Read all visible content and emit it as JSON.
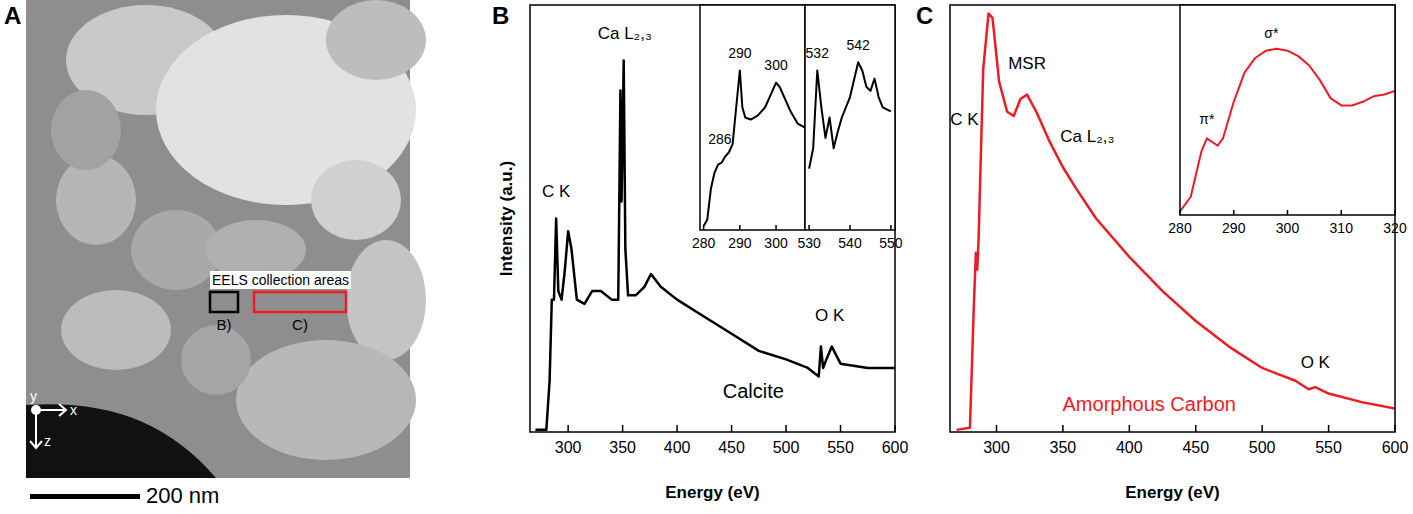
{
  "chart_data": [
    {
      "type": "image",
      "panel": "A",
      "annotation": "EELS collection areas",
      "regions": [
        {
          "label": "B)",
          "color": "#000000"
        },
        {
          "label": "C)",
          "color": "#ed1c24"
        }
      ],
      "scale_bar": "200 nm",
      "triad": [
        "x",
        "y",
        "z"
      ]
    },
    {
      "type": "line",
      "panel": "B",
      "x_label": "Energy (eV)",
      "y_label": "Intensity (a.u.)",
      "color": "#000000",
      "xlim": [
        265,
        600
      ],
      "xticks": [
        300,
        350,
        400,
        450,
        500,
        550,
        600
      ],
      "ylim": [
        0,
        1
      ],
      "tick_labels": "x",
      "x": [
        270,
        280,
        283,
        285,
        287,
        289,
        291,
        294,
        297,
        300,
        303,
        308,
        315,
        322,
        330,
        340,
        346,
        348,
        349,
        351,
        352.5,
        355,
        362,
        370,
        376,
        385,
        400,
        425,
        450,
        475,
        500,
        520,
        530,
        532,
        534,
        537,
        542,
        546,
        550,
        575,
        600
      ],
      "values": [
        0.005,
        0.005,
        0.12,
        0.31,
        0.31,
        0.5,
        0.33,
        0.31,
        0.38,
        0.47,
        0.43,
        0.31,
        0.3,
        0.33,
        0.33,
        0.31,
        0.31,
        0.8,
        0.54,
        0.87,
        0.43,
        0.32,
        0.32,
        0.34,
        0.37,
        0.34,
        0.31,
        0.27,
        0.23,
        0.19,
        0.17,
        0.15,
        0.13,
        0.2,
        0.15,
        0.17,
        0.2,
        0.18,
        0.16,
        0.15,
        0.15
      ],
      "annotations": [
        {
          "text": "C K",
          "x": 289,
          "y": 0.55
        },
        {
          "text": "Ca L₂,₃",
          "x": 352,
          "y": 0.92
        },
        {
          "text": "O K",
          "x": 540,
          "y": 0.26
        },
        {
          "text": "Calcite",
          "x": 470,
          "y": 0.08
        }
      ]
    },
    {
      "type": "line",
      "color": "#000000",
      "xlim": [
        279,
        308
      ],
      "xticks": [
        280,
        290,
        300
      ],
      "ylim": [
        0,
        1.1
      ],
      "tick_labels": "x",
      "x": [
        280,
        281,
        282,
        283,
        284,
        285,
        286,
        287,
        288,
        289,
        290,
        290.7,
        291.5,
        293,
        295,
        297,
        299,
        300,
        301,
        302,
        304,
        306,
        308
      ],
      "values": [
        0.02,
        0.05,
        0.2,
        0.28,
        0.32,
        0.33,
        0.36,
        0.38,
        0.42,
        0.6,
        0.78,
        0.6,
        0.55,
        0.54,
        0.56,
        0.6,
        0.68,
        0.72,
        0.7,
        0.66,
        0.58,
        0.52,
        0.5
      ],
      "annotations": [
        {
          "text": "286",
          "x": 284.5,
          "y": 0.42
        },
        {
          "text": "290",
          "x": 290,
          "y": 0.84
        },
        {
          "text": "300",
          "x": 300,
          "y": 0.78
        }
      ]
    },
    {
      "type": "line",
      "color": "#000000",
      "xlim": [
        529,
        551
      ],
      "xticks": [
        530,
        540,
        550
      ],
      "ylim": [
        0,
        1.1
      ],
      "tick_labels": "x",
      "x": [
        530,
        531,
        532,
        533,
        534,
        535,
        536,
        537,
        538,
        540,
        542,
        543,
        544,
        545,
        546,
        547,
        548,
        550
      ],
      "values": [
        0.3,
        0.4,
        0.78,
        0.6,
        0.45,
        0.55,
        0.4,
        0.48,
        0.55,
        0.65,
        0.82,
        0.78,
        0.7,
        0.68,
        0.74,
        0.65,
        0.6,
        0.58
      ],
      "annotations": [
        {
          "text": "532",
          "x": 532,
          "y": 0.84
        },
        {
          "text": "542",
          "x": 542,
          "y": 0.88
        }
      ]
    },
    {
      "type": "line",
      "panel": "C",
      "x_label": "Energy (eV)",
      "color": "#ed1c24",
      "xlim": [
        265,
        600
      ],
      "xticks": [
        300,
        350,
        400,
        450,
        500,
        550,
        600
      ],
      "ylim": [
        0,
        1
      ],
      "tick_labels": "x",
      "x": [
        270,
        280,
        283,
        284.5,
        285.5,
        286.5,
        290,
        294,
        297,
        302,
        308,
        313,
        318,
        323,
        330,
        340,
        350,
        360,
        375,
        400,
        425,
        450,
        475,
        500,
        525,
        535,
        540,
        550,
        575,
        600
      ],
      "values": [
        0.005,
        0.01,
        0.3,
        0.42,
        0.38,
        0.45,
        0.85,
        0.98,
        0.97,
        0.82,
        0.75,
        0.74,
        0.78,
        0.79,
        0.75,
        0.68,
        0.62,
        0.57,
        0.5,
        0.41,
        0.33,
        0.26,
        0.2,
        0.15,
        0.12,
        0.1,
        0.105,
        0.09,
        0.07,
        0.055
      ],
      "annotations": [
        {
          "text": "C K",
          "x": 286.5,
          "y": 0.72
        },
        {
          "text": "MSR",
          "x": 323,
          "y": 0.85
        },
        {
          "text": "Ca L₂,₃",
          "x": 348,
          "y": 0.68
        },
        {
          "text": "O K",
          "x": 540,
          "y": 0.15
        },
        {
          "text": "Amorphous Carbon",
          "x": 415,
          "y": 0.05,
          "color": "#ed1c24"
        }
      ]
    },
    {
      "type": "line",
      "color": "#ed1c24",
      "xlim": [
        280,
        320
      ],
      "xticks": [
        280,
        290,
        300,
        310,
        320
      ],
      "ylim": [
        0,
        1.15
      ],
      "tick_labels": "x",
      "x": [
        280,
        282,
        284,
        285,
        286,
        287,
        288,
        290,
        292,
        294,
        296,
        298,
        300,
        302,
        304,
        306,
        308,
        310,
        312,
        314,
        316,
        318,
        320
      ],
      "values": [
        0.02,
        0.1,
        0.35,
        0.42,
        0.4,
        0.38,
        0.42,
        0.62,
        0.78,
        0.86,
        0.9,
        0.91,
        0.9,
        0.87,
        0.82,
        0.74,
        0.64,
        0.6,
        0.6,
        0.62,
        0.65,
        0.66,
        0.68
      ],
      "annotations": [
        {
          "text": "π*",
          "x": 285,
          "y": 0.5
        },
        {
          "text": "σ*",
          "x": 297,
          "y": 0.97
        }
      ]
    }
  ]
}
